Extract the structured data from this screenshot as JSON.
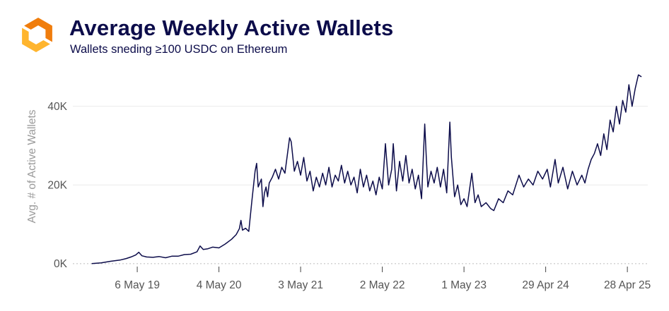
{
  "header": {
    "title": "Average Weekly Active Wallets",
    "subtitle": "Wallets sneding ≥100 USDC on Ethereum",
    "logo_icon": "orange-hexagon-logo-icon"
  },
  "colors": {
    "line": "#0c0c4a",
    "logo_light": "#ffb52e",
    "logo_dark": "#f07d0c",
    "gridline": "#ebebeb",
    "zero_line": "#bdbdbd"
  },
  "chart_data": {
    "type": "line",
    "title": "Average Weekly Active Wallets",
    "subtitle": "Wallets sneding ≥100 USDC on Ethereum",
    "ylabel": "Avg. # of Active Wallets",
    "xlabel": "",
    "ylim": [
      -2000,
      50000
    ],
    "xlim": [
      "2018-07-23",
      "2025-07-28"
    ],
    "grid": "horizontal",
    "zero_line": "dotted",
    "y_ticks": [
      {
        "value": 0,
        "label": "0K"
      },
      {
        "value": 20000,
        "label": "20K"
      },
      {
        "value": 40000,
        "label": "40K"
      }
    ],
    "x_ticks": [
      {
        "date": "2019-05-06",
        "label": "6 May 19"
      },
      {
        "date": "2020-05-04",
        "label": "4 May 20"
      },
      {
        "date": "2021-05-03",
        "label": "3 May 21"
      },
      {
        "date": "2022-05-02",
        "label": "2 May 22"
      },
      {
        "date": "2023-05-01",
        "label": "1 May 23"
      },
      {
        "date": "2024-04-29",
        "label": "29 Apr 24"
      },
      {
        "date": "2025-04-28",
        "label": "28 Apr 25"
      }
    ],
    "series": [
      {
        "points": [
          [
            "2018-10-15",
            0
          ],
          [
            "2018-11-26",
            200
          ],
          [
            "2019-01-07",
            600
          ],
          [
            "2019-02-18",
            900
          ],
          [
            "2019-03-18",
            1300
          ],
          [
            "2019-04-08",
            1700
          ],
          [
            "2019-04-29",
            2200
          ],
          [
            "2019-05-13",
            2900
          ],
          [
            "2019-05-27",
            2000
          ],
          [
            "2019-06-17",
            1700
          ],
          [
            "2019-07-15",
            1600
          ],
          [
            "2019-08-12",
            1800
          ],
          [
            "2019-09-09",
            1500
          ],
          [
            "2019-10-07",
            1900
          ],
          [
            "2019-11-04",
            1900
          ],
          [
            "2019-12-02",
            2300
          ],
          [
            "2019-12-30",
            2400
          ],
          [
            "2020-01-27",
            3000
          ],
          [
            "2020-02-10",
            4500
          ],
          [
            "2020-02-24",
            3600
          ],
          [
            "2020-03-16",
            3800
          ],
          [
            "2020-04-06",
            4200
          ],
          [
            "2020-05-04",
            4000
          ],
          [
            "2020-06-01",
            5000
          ],
          [
            "2020-06-29",
            6200
          ],
          [
            "2020-07-20",
            7400
          ],
          [
            "2020-08-03",
            8900
          ],
          [
            "2020-08-10",
            11000
          ],
          [
            "2020-08-17",
            8500
          ],
          [
            "2020-08-31",
            9000
          ],
          [
            "2020-09-14",
            8200
          ],
          [
            "2020-09-28",
            16000
          ],
          [
            "2020-10-12",
            23500
          ],
          [
            "2020-10-19",
            25500
          ],
          [
            "2020-10-26",
            19500
          ],
          [
            "2020-11-09",
            21500
          ],
          [
            "2020-11-16",
            14500
          ],
          [
            "2020-11-23",
            18000
          ],
          [
            "2020-11-30",
            19500
          ],
          [
            "2020-12-07",
            17000
          ],
          [
            "2020-12-14",
            20500
          ],
          [
            "2020-12-28",
            22000
          ],
          [
            "2021-01-11",
            24000
          ],
          [
            "2021-01-25",
            21500
          ],
          [
            "2021-02-08",
            24500
          ],
          [
            "2021-02-22",
            23000
          ],
          [
            "2021-03-08",
            29000
          ],
          [
            "2021-03-15",
            32000
          ],
          [
            "2021-03-22",
            31000
          ],
          [
            "2021-04-05",
            23500
          ],
          [
            "2021-04-19",
            26000
          ],
          [
            "2021-05-03",
            22500
          ],
          [
            "2021-05-17",
            27000
          ],
          [
            "2021-05-31",
            21000
          ],
          [
            "2021-06-14",
            23500
          ],
          [
            "2021-06-28",
            18500
          ],
          [
            "2021-07-12",
            22000
          ],
          [
            "2021-07-26",
            19500
          ],
          [
            "2021-08-09",
            23000
          ],
          [
            "2021-08-23",
            20000
          ],
          [
            "2021-09-06",
            24500
          ],
          [
            "2021-09-20",
            19500
          ],
          [
            "2021-10-04",
            22500
          ],
          [
            "2021-10-18",
            21000
          ],
          [
            "2021-11-01",
            25000
          ],
          [
            "2021-11-15",
            20500
          ],
          [
            "2021-11-29",
            23500
          ],
          [
            "2021-12-13",
            20000
          ],
          [
            "2021-12-27",
            22000
          ],
          [
            "2022-01-10",
            18000
          ],
          [
            "2022-01-24",
            24000
          ],
          [
            "2022-02-07",
            19500
          ],
          [
            "2022-02-21",
            22500
          ],
          [
            "2022-03-07",
            18500
          ],
          [
            "2022-03-21",
            21000
          ],
          [
            "2022-04-04",
            17500
          ],
          [
            "2022-04-18",
            22000
          ],
          [
            "2022-05-02",
            19000
          ],
          [
            "2022-05-16",
            30500
          ],
          [
            "2022-05-30",
            20000
          ],
          [
            "2022-06-13",
            24000
          ],
          [
            "2022-06-20",
            30500
          ],
          [
            "2022-07-04",
            18500
          ],
          [
            "2022-07-18",
            26000
          ],
          [
            "2022-08-01",
            21000
          ],
          [
            "2022-08-15",
            27500
          ],
          [
            "2022-08-29",
            20500
          ],
          [
            "2022-09-12",
            24000
          ],
          [
            "2022-09-26",
            19000
          ],
          [
            "2022-10-10",
            22500
          ],
          [
            "2022-10-24",
            16500
          ],
          [
            "2022-11-07",
            35500
          ],
          [
            "2022-11-14",
            27000
          ],
          [
            "2022-11-21",
            19500
          ],
          [
            "2022-12-05",
            23500
          ],
          [
            "2022-12-19",
            20500
          ],
          [
            "2023-01-02",
            24500
          ],
          [
            "2023-01-16",
            19500
          ],
          [
            "2023-01-30",
            24000
          ],
          [
            "2023-02-13",
            18000
          ],
          [
            "2023-02-27",
            36000
          ],
          [
            "2023-03-06",
            27000
          ],
          [
            "2023-03-20",
            17000
          ],
          [
            "2023-04-03",
            20000
          ],
          [
            "2023-04-17",
            15000
          ],
          [
            "2023-05-01",
            16500
          ],
          [
            "2023-05-15",
            14500
          ],
          [
            "2023-06-05",
            23000
          ],
          [
            "2023-06-19",
            15500
          ],
          [
            "2023-07-03",
            17500
          ],
          [
            "2023-07-17",
            14500
          ],
          [
            "2023-08-07",
            15500
          ],
          [
            "2023-08-28",
            14000
          ],
          [
            "2023-09-11",
            13500
          ],
          [
            "2023-10-02",
            16500
          ],
          [
            "2023-10-23",
            15500
          ],
          [
            "2023-11-13",
            18500
          ],
          [
            "2023-12-04",
            17500
          ],
          [
            "2024-01-01",
            22500
          ],
          [
            "2024-01-22",
            19500
          ],
          [
            "2024-02-12",
            21500
          ],
          [
            "2024-03-04",
            20000
          ],
          [
            "2024-03-25",
            23500
          ],
          [
            "2024-04-15",
            21500
          ],
          [
            "2024-05-06",
            24000
          ],
          [
            "2024-05-20",
            19500
          ],
          [
            "2024-06-10",
            26500
          ],
          [
            "2024-06-24",
            20500
          ],
          [
            "2024-07-15",
            24500
          ],
          [
            "2024-08-05",
            19000
          ],
          [
            "2024-08-26",
            23500
          ],
          [
            "2024-09-16",
            20000
          ],
          [
            "2024-10-07",
            22500
          ],
          [
            "2024-10-21",
            20500
          ],
          [
            "2024-11-04",
            24000
          ],
          [
            "2024-11-18",
            26500
          ],
          [
            "2024-12-02",
            28000
          ],
          [
            "2024-12-16",
            30500
          ],
          [
            "2024-12-30",
            27500
          ],
          [
            "2025-01-13",
            33000
          ],
          [
            "2025-01-27",
            29000
          ],
          [
            "2025-02-10",
            36500
          ],
          [
            "2025-02-24",
            33500
          ],
          [
            "2025-03-10",
            40000
          ],
          [
            "2025-03-24",
            35500
          ],
          [
            "2025-04-07",
            41500
          ],
          [
            "2025-04-21",
            38500
          ],
          [
            "2025-05-05",
            45500
          ],
          [
            "2025-05-19",
            40000
          ],
          [
            "2025-06-02",
            44500
          ],
          [
            "2025-06-16",
            48000
          ],
          [
            "2025-06-30",
            47500
          ]
        ]
      }
    ]
  }
}
